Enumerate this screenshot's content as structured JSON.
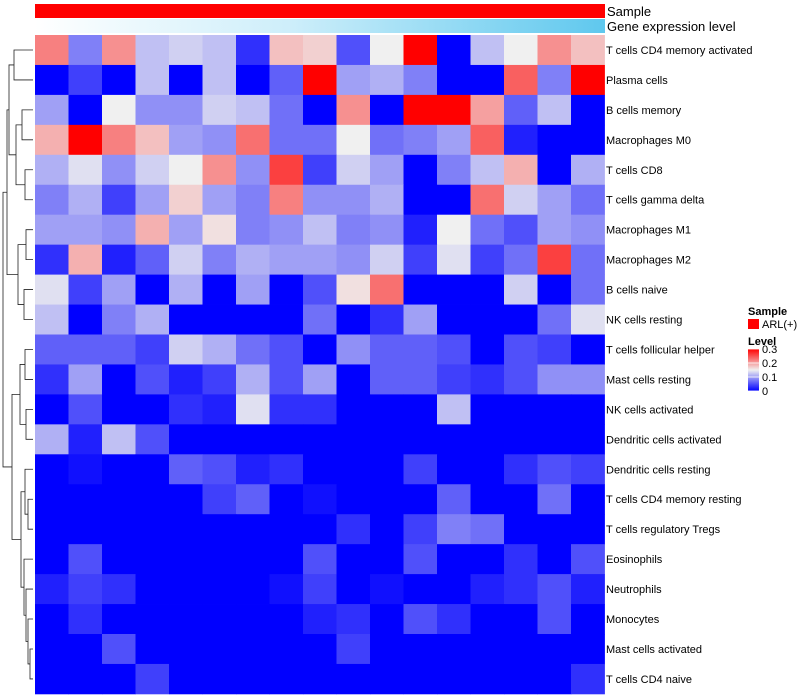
{
  "chart_data": {
    "type": "heatmap",
    "rows": [
      "T cells CD4 memory activated",
      "Plasma cells",
      "B cells memory",
      "Macrophages M0",
      "T cells CD8",
      "T cells gamma delta",
      "Macrophages M1",
      "Macrophages M2",
      "B cells naive",
      "NK cells resting",
      "T cells follicular helper",
      "Mast cells resting",
      "NK cells activated",
      "Dendritic cells activated",
      "Dendritic cells resting",
      "T cells CD4 memory resting",
      "T cells regulatory  Tregs",
      "Eosinophils",
      "Neutrophils",
      "Monocytes",
      "Mast cells activated",
      "T cells CD4 naive"
    ],
    "values": [
      [
        0.22,
        0.08,
        0.21,
        0.12,
        0.13,
        0.12,
        0.03,
        0.18,
        0.17,
        0.05,
        0.15,
        0.3,
        0.0,
        0.12,
        0.15,
        0.21,
        0.18
      ],
      [
        0.0,
        0.04,
        0.0,
        0.12,
        0.0,
        0.12,
        0.0,
        0.06,
        0.3,
        0.1,
        0.11,
        0.08,
        0.0,
        0.0,
        0.24,
        0.08,
        0.3
      ],
      [
        0.1,
        0.0,
        0.15,
        0.09,
        0.09,
        0.13,
        0.12,
        0.07,
        0.0,
        0.21,
        0.0,
        0.3,
        0.3,
        0.2,
        0.06,
        0.12,
        0.0
      ],
      [
        0.19,
        0.3,
        0.22,
        0.18,
        0.1,
        0.09,
        0.23,
        0.07,
        0.07,
        0.15,
        0.07,
        0.08,
        0.1,
        0.24,
        0.02,
        0.0,
        0.0
      ],
      [
        0.11,
        0.14,
        0.09,
        0.13,
        0.15,
        0.21,
        0.09,
        0.26,
        0.04,
        0.13,
        0.1,
        0.0,
        0.08,
        0.12,
        0.19,
        0.0,
        0.11
      ],
      [
        0.08,
        0.11,
        0.04,
        0.1,
        0.17,
        0.1,
        0.08,
        0.22,
        0.09,
        0.09,
        0.11,
        0.0,
        0.0,
        0.23,
        0.13,
        0.1,
        0.07
      ],
      [
        0.1,
        0.1,
        0.09,
        0.19,
        0.1,
        0.16,
        0.08,
        0.09,
        0.12,
        0.08,
        0.09,
        0.02,
        0.15,
        0.07,
        0.05,
        0.1,
        0.09
      ],
      [
        0.03,
        0.19,
        0.02,
        0.06,
        0.13,
        0.08,
        0.11,
        0.1,
        0.1,
        0.09,
        0.13,
        0.04,
        0.14,
        0.04,
        0.07,
        0.26,
        0.07
      ],
      [
        0.14,
        0.04,
        0.1,
        0.0,
        0.11,
        0.0,
        0.1,
        0.0,
        0.05,
        0.16,
        0.23,
        0.0,
        0.0,
        0.0,
        0.13,
        0.0,
        0.07
      ],
      [
        0.12,
        0.0,
        0.08,
        0.11,
        0.0,
        0.0,
        0.0,
        0.0,
        0.07,
        0.0,
        0.03,
        0.1,
        0.0,
        0.0,
        0.0,
        0.07,
        0.14
      ],
      [
        0.06,
        0.06,
        0.06,
        0.04,
        0.13,
        0.11,
        0.07,
        0.05,
        0.0,
        0.09,
        0.06,
        0.06,
        0.05,
        0.0,
        0.05,
        0.04,
        0.0
      ],
      [
        0.03,
        0.1,
        0.0,
        0.05,
        0.02,
        0.04,
        0.11,
        0.05,
        0.1,
        0.0,
        0.06,
        0.06,
        0.04,
        0.03,
        0.05,
        0.09,
        0.09
      ],
      [
        0.0,
        0.05,
        0.0,
        0.0,
        0.03,
        0.02,
        0.14,
        0.03,
        0.03,
        0.0,
        0.0,
        0.0,
        0.12,
        0.0,
        0.0,
        0.0,
        0.0
      ],
      [
        0.11,
        0.02,
        0.12,
        0.05,
        0.0,
        0.0,
        0.0,
        0.0,
        0.0,
        0.0,
        0.0,
        0.0,
        0.0,
        0.0,
        0.0,
        0.0,
        0.0
      ],
      [
        0.0,
        0.01,
        0.0,
        0.0,
        0.06,
        0.05,
        0.02,
        0.03,
        0.0,
        0.0,
        0.0,
        0.04,
        0.0,
        0.0,
        0.03,
        0.05,
        0.04
      ],
      [
        0.0,
        0.0,
        0.0,
        0.0,
        0.0,
        0.04,
        0.06,
        0.0,
        0.01,
        0.0,
        0.0,
        0.0,
        0.06,
        0.0,
        0.0,
        0.07,
        0.0
      ],
      [
        0.0,
        0.0,
        0.0,
        0.0,
        0.0,
        0.0,
        0.0,
        0.0,
        0.0,
        0.03,
        0.0,
        0.04,
        0.08,
        0.07,
        0.0,
        0.0,
        0.0
      ],
      [
        0.0,
        0.05,
        0.0,
        0.0,
        0.0,
        0.0,
        0.0,
        0.0,
        0.05,
        0.0,
        0.0,
        0.05,
        0.0,
        0.0,
        0.03,
        0.0,
        0.05
      ],
      [
        0.02,
        0.04,
        0.03,
        0.0,
        0.0,
        0.0,
        0.0,
        0.01,
        0.04,
        0.0,
        0.01,
        0.0,
        0.0,
        0.02,
        0.03,
        0.05,
        0.02
      ],
      [
        0.0,
        0.03,
        0.0,
        0.0,
        0.0,
        0.0,
        0.0,
        0.0,
        0.02,
        0.03,
        0.0,
        0.05,
        0.03,
        0.0,
        0.0,
        0.05,
        0.0
      ],
      [
        0.0,
        0.0,
        0.05,
        0.0,
        0.0,
        0.0,
        0.0,
        0.0,
        0.0,
        0.04,
        0.0,
        0.0,
        0.0,
        0.0,
        0.0,
        0.0,
        0.0
      ],
      [
        0.0,
        0.0,
        0.0,
        0.04,
        0.0,
        0.0,
        0.0,
        0.0,
        0.0,
        0.0,
        0.0,
        0.0,
        0.0,
        0.0,
        0.0,
        0.0,
        0.03
      ]
    ],
    "color_scale": {
      "min": 0,
      "mid": 0.15,
      "max": 0.3,
      "low_color": "#0000ff",
      "mid_color": "#f0f0f0",
      "high_color": "#ff0000"
    },
    "annotation_tracks": [
      {
        "name": "Sample",
        "color": "#ff0000"
      },
      {
        "name": "Gene expression level",
        "gradient": [
          "#ffffff",
          "#5fc8ee"
        ]
      }
    ],
    "legend": {
      "position": "right",
      "sample_title": "Sample",
      "sample_entries": [
        {
          "label": "ARL(+)",
          "color": "#ff0000"
        }
      ],
      "level_title": "Level",
      "level_ticks": [
        {
          "value": 0.3,
          "label": "0.3"
        },
        {
          "value": 0.2,
          "label": "0.2"
        },
        {
          "value": 0.1,
          "label": "0.1"
        },
        {
          "value": 0,
          "label": "0"
        }
      ]
    },
    "row_dendrogram": true,
    "grid": false
  }
}
